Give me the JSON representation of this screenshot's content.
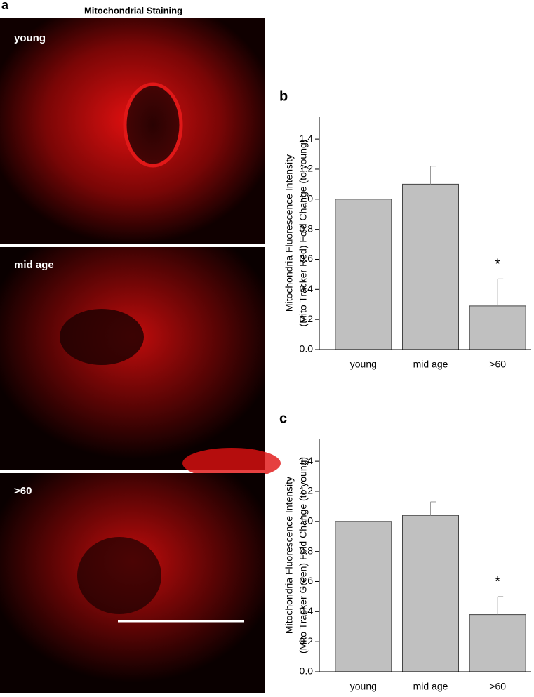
{
  "panel_a": {
    "label": "a",
    "title": "Mitochondrial Staining",
    "images": [
      {
        "label": "young"
      },
      {
        "label": "mid age"
      },
      {
        "label": ">60"
      }
    ]
  },
  "chart_data": [
    {
      "type": "bar",
      "label": "b",
      "ylabel": [
        "Mitochondria Fluorescence Intensity",
        "(Mito Tracker Red) Fold Change (to young)"
      ],
      "categories": [
        "young",
        "mid age",
        ">60"
      ],
      "values": [
        1.0,
        1.1,
        0.29
      ],
      "errors": [
        null,
        0.12,
        0.18
      ],
      "color": "#c0c0c0",
      "ylim": [
        0,
        1.55
      ],
      "yticks": [
        {
          "value": 0,
          "label": "0.0"
        },
        0.2,
        0.4,
        0.6,
        0.8,
        {
          "value": 1,
          "label": "1.0"
        },
        1.2,
        1.4
      ],
      "annotation": {
        "text": "*",
        "category": ">60"
      }
    },
    {
      "type": "bar",
      "label": "c",
      "ylabel": [
        "Mitochondria Fluorescence Intensity",
        "(Mito Tracker Green) Fold Change (to young)"
      ],
      "categories": [
        "young",
        "mid age",
        ">60"
      ],
      "values": [
        1.0,
        1.04,
        0.38
      ],
      "errors": [
        null,
        0.09,
        0.12
      ],
      "color": "#c0c0c0",
      "ylim": [
        0,
        1.55
      ],
      "yticks": [
        {
          "value": 0,
          "label": "0.0"
        },
        0.2,
        0.4,
        0.6,
        0.8,
        {
          "value": 1,
          "label": "1.0"
        },
        1.2,
        1.4
      ],
      "annotation": {
        "text": "*",
        "category": ">60"
      }
    }
  ]
}
